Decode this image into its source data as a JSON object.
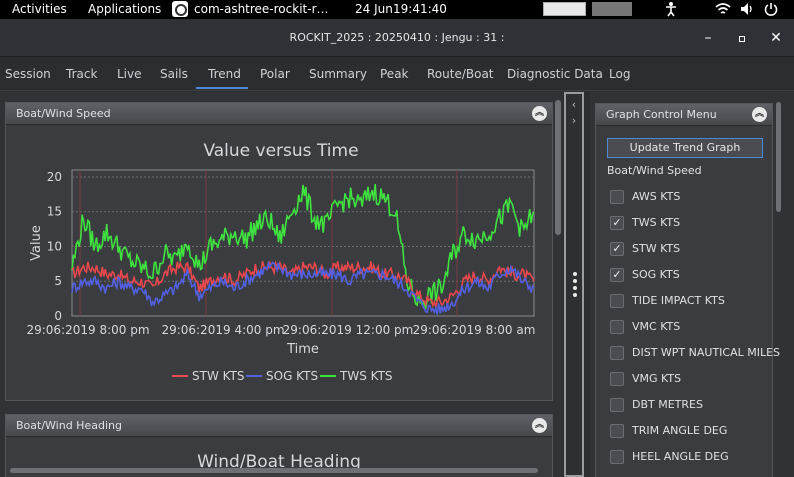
{
  "topbar": {
    "activities": "Activities",
    "applications": "Applications",
    "app_name": "com-ashtree-rockit-r…",
    "date": "24 Jun",
    "time": "19:41:40",
    "icons": [
      "accessibility-icon",
      "wifi-icon",
      "volume-icon",
      "power-icon"
    ]
  },
  "window": {
    "title": "ROCKIT_2025 : 20250410 : Jengu : 31 :",
    "controls": [
      "minimize-icon",
      "maximize-icon",
      "close-icon"
    ]
  },
  "tabs": [
    {
      "label": "Session"
    },
    {
      "label": "Track"
    },
    {
      "label": "Live"
    },
    {
      "label": "Sails"
    },
    {
      "label": "Trend",
      "active": true
    },
    {
      "label": "Polar"
    },
    {
      "label": "Summary"
    },
    {
      "label": "Peak"
    },
    {
      "label": "Route/Boat"
    },
    {
      "label": "Diagnostic Data"
    },
    {
      "label": "Log"
    }
  ],
  "panels": {
    "speed": {
      "header": "Boat/Wind Speed"
    },
    "heading": {
      "header": "Boat/Wind Heading",
      "chart_title": "Wind/Boat Heading"
    }
  },
  "chart_data": {
    "type": "line",
    "title": "Value versus Time",
    "xlabel": "Time",
    "ylabel": "Value",
    "ylim": [
      0,
      21
    ],
    "yticks": [
      "0",
      "5",
      "10",
      "15",
      "20"
    ],
    "xticks": [
      "29:06:2019 8:00 pm",
      "29:06:2019 4:00 pm",
      "29:06:2019 12:00 pm",
      "29:06:2019 8:00 am"
    ],
    "grid": true,
    "legend_position": "bottom",
    "x": [
      0,
      1,
      2,
      3,
      4,
      5,
      6,
      7,
      8,
      9,
      10,
      11,
      12,
      13,
      14,
      15,
      16,
      17,
      18,
      19,
      20,
      21,
      22,
      23,
      24,
      25,
      26,
      27,
      28,
      29,
      30,
      31,
      32,
      33,
      34,
      35,
      36,
      37,
      38,
      39,
      40
    ],
    "series": [
      {
        "name": "STW KTS",
        "color": "#e8474c",
        "values": [
          6,
          7,
          7,
          6,
          6,
          5,
          5,
          4,
          6,
          7,
          7,
          4,
          5,
          6,
          5,
          6,
          7,
          7,
          7,
          6,
          7,
          7,
          6,
          7,
          7,
          7,
          7,
          6,
          6,
          5,
          3,
          2,
          2,
          3,
          5,
          6,
          5,
          7,
          6,
          6,
          5
        ]
      },
      {
        "name": "SOG KTS",
        "color": "#5260e0",
        "values": [
          4,
          5,
          5,
          4,
          5,
          4,
          4,
          2,
          3,
          4,
          6,
          3,
          4,
          5,
          4,
          5,
          6,
          7,
          7,
          6,
          6,
          6,
          6,
          6,
          5,
          6,
          6,
          6,
          5,
          4,
          2,
          1,
          1,
          2,
          4,
          5,
          4,
          6,
          7,
          5,
          4
        ]
      },
      {
        "name": "TWS KTS",
        "color": "#3fe23f",
        "values": [
          7,
          14,
          10,
          12,
          10,
          8,
          7,
          6,
          9,
          8,
          11,
          7,
          10,
          11,
          12,
          11,
          13,
          14,
          11,
          15,
          18,
          14,
          13,
          16,
          17,
          16,
          18,
          17,
          15,
          5,
          2,
          3,
          4,
          9,
          12,
          11,
          12,
          14,
          16,
          12,
          15
        ]
      }
    ]
  }
}
